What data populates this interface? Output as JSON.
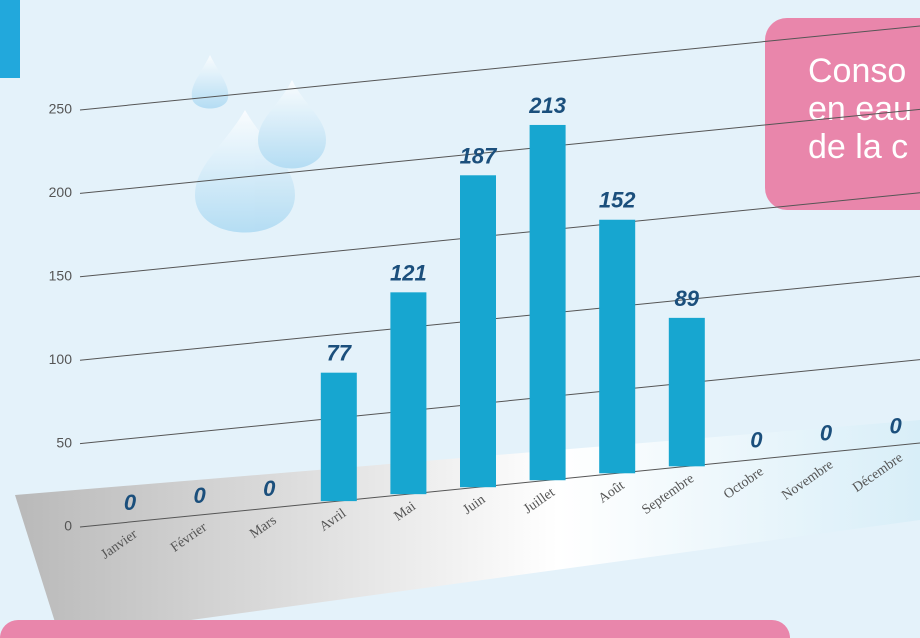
{
  "chart_data": {
    "type": "bar",
    "title_lines": [
      "Conso",
      "en eau",
      "de la c"
    ],
    "categories": [
      "Janvier",
      "Février",
      "Mars",
      "Avril",
      "Mai",
      "Juin",
      "Juillet",
      "Août",
      "Septembre",
      "Octobre",
      "Novembre",
      "Décembre"
    ],
    "values": [
      0,
      0,
      0,
      77,
      121,
      187,
      213,
      152,
      89,
      0,
      0,
      0
    ],
    "color": "#17a6d0",
    "ylim": [
      0,
      250
    ],
    "yticks": [
      0,
      50,
      100,
      150,
      200,
      250
    ],
    "grid": true
  }
}
